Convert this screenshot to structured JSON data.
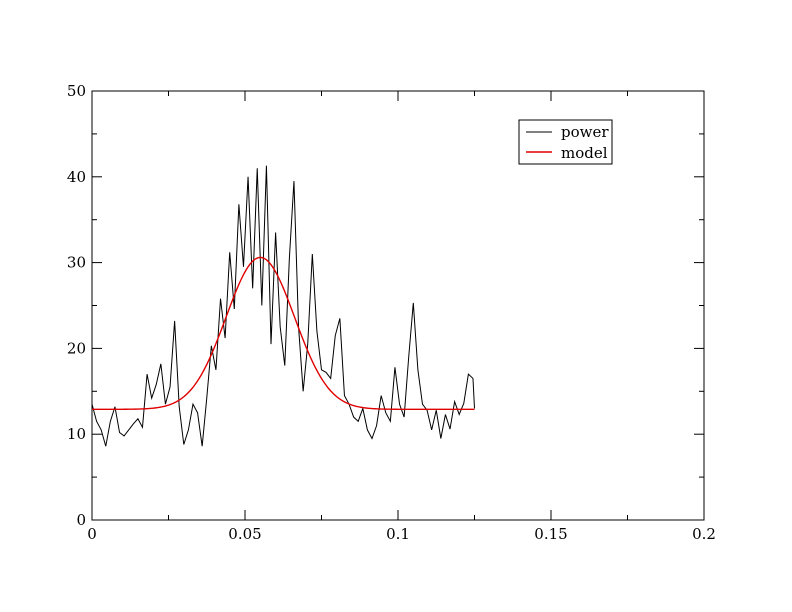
{
  "chart_data": {
    "type": "line",
    "title": "",
    "xlabel": "",
    "ylabel": "",
    "xlim": [
      0,
      0.2
    ],
    "ylim": [
      0,
      50
    ],
    "xticks": [
      "0",
      "0.05",
      "0.1",
      "0.15",
      "0.2"
    ],
    "yticks": [
      "0",
      "10",
      "20",
      "30",
      "40",
      "50"
    ],
    "grid": false,
    "legend_position": "top-right",
    "series": [
      {
        "name": "power",
        "color": "#000000",
        "x": [
          0,
          0.0015,
          0.003,
          0.0045,
          0.006,
          0.0075,
          0.009,
          0.0105,
          0.012,
          0.0135,
          0.015,
          0.0165,
          0.018,
          0.0195,
          0.021,
          0.0225,
          0.024,
          0.0255,
          0.027,
          0.0285,
          0.03,
          0.0315,
          0.033,
          0.0345,
          0.036,
          0.0375,
          0.039,
          0.0405,
          0.042,
          0.0435,
          0.045,
          0.0465,
          0.048,
          0.0495,
          0.051,
          0.0525,
          0.054,
          0.0555,
          0.057,
          0.0585,
          0.06,
          0.0615,
          0.063,
          0.0645,
          0.066,
          0.0675,
          0.069,
          0.0705,
          0.072,
          0.0735,
          0.075,
          0.0765,
          0.078,
          0.0795,
          0.081,
          0.0825,
          0.084,
          0.0855,
          0.087,
          0.0885,
          0.09,
          0.0915,
          0.093,
          0.0945,
          0.096,
          0.0975,
          0.099,
          0.1005,
          0.102,
          0.1035,
          0.105,
          0.1065,
          0.108,
          0.1095,
          0.111,
          0.1125,
          0.114,
          0.1155,
          0.117,
          0.1185,
          0.12,
          0.1215,
          0.123,
          0.1245,
          0.125
        ],
        "y": [
          13.5,
          11.5,
          10.5,
          8.6,
          11.5,
          13.2,
          10.2,
          9.8,
          10.5,
          11.2,
          11.8,
          10.8,
          17,
          14.2,
          15.8,
          18.2,
          13.5,
          15.5,
          23.2,
          13.2,
          8.8,
          10.5,
          13.5,
          12.5,
          8.6,
          14.2,
          20.3,
          17.5,
          25.8,
          21.2,
          31.2,
          24.6,
          36.8,
          29.5,
          40,
          27,
          41,
          25,
          41.3,
          20.5,
          33.5,
          22.5,
          18,
          30.5,
          39.5,
          22.5,
          15,
          20.5,
          31,
          22,
          17.5,
          17.2,
          16.5,
          21.5,
          23.5,
          14.5,
          13.5,
          12,
          11.5,
          13,
          10.5,
          9.5,
          11,
          14.5,
          12.5,
          11.5,
          17.8,
          13.5,
          12,
          19,
          25.3,
          17.5,
          13.5,
          12.8,
          10.5,
          12.8,
          9.5,
          12.3,
          10.6,
          13.8,
          12.3,
          13.6,
          17,
          16.5,
          13
        ]
      },
      {
        "name": "model",
        "color": "#e00000",
        "baseline": 12.9,
        "amplitude": 17.7,
        "center": 0.055,
        "width": 0.0112,
        "x_range": [
          0,
          0.125
        ]
      }
    ]
  }
}
